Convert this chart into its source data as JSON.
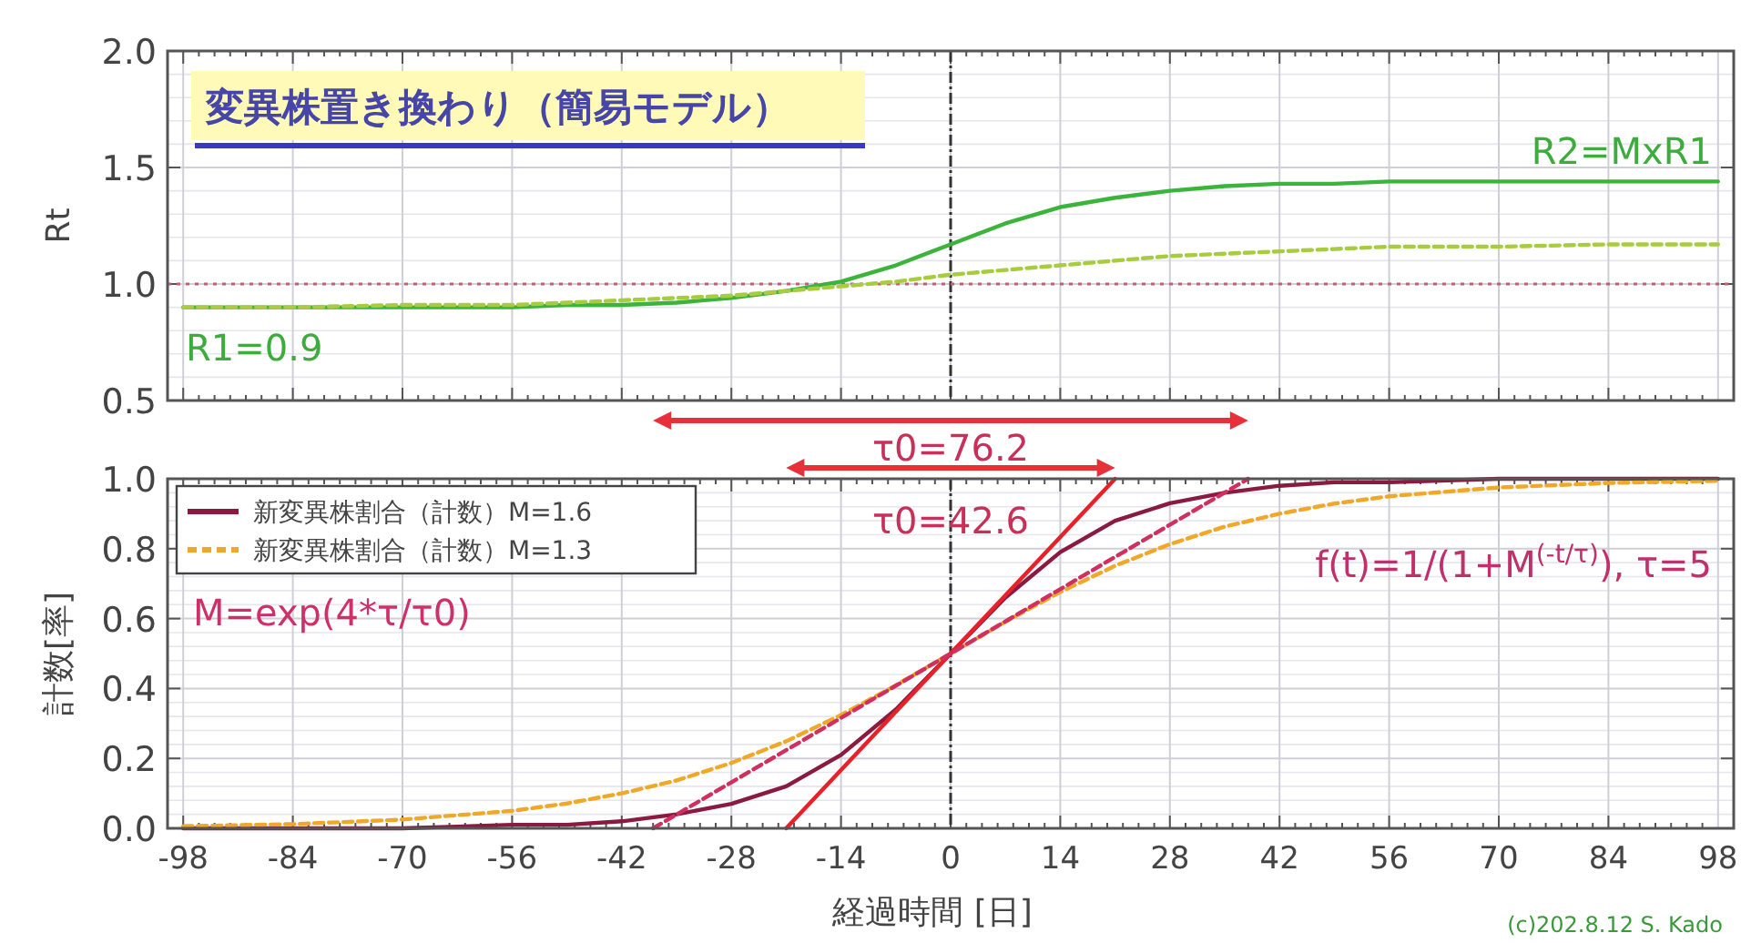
{
  "chart_data": [
    {
      "type": "line",
      "title": "変異株置き換わり（簡易モデル）",
      "ylabel": "Rt",
      "x": [
        -98,
        -84,
        -70,
        -56,
        -49,
        -42,
        -35,
        -28,
        -21,
        -14,
        -7,
        0,
        7,
        14,
        21,
        28,
        35,
        42,
        49,
        56,
        70,
        84,
        98
      ],
      "series": [
        {
          "color": "#3cb43c",
          "line_style": "solid",
          "values": [
            0.9,
            0.9,
            0.9,
            0.9,
            0.91,
            0.91,
            0.92,
            0.94,
            0.97,
            1.01,
            1.08,
            1.17,
            1.26,
            1.33,
            1.37,
            1.4,
            1.42,
            1.43,
            1.43,
            1.44,
            1.44,
            1.44,
            1.44
          ]
        },
        {
          "color": "#a8cc40",
          "line_style": "dashed",
          "values": [
            0.9,
            0.9,
            0.91,
            0.91,
            0.92,
            0.93,
            0.94,
            0.95,
            0.97,
            0.99,
            1.01,
            1.04,
            1.06,
            1.08,
            1.1,
            1.12,
            1.13,
            1.14,
            1.15,
            1.16,
            1.16,
            1.17,
            1.17
          ]
        }
      ],
      "annotations": [
        "R1=0.9",
        "R2=MxR1"
      ],
      "ref_lines": [
        {
          "axis": "x",
          "value": 0,
          "color": "#333333",
          "line_style": "dashed"
        },
        {
          "axis": "y",
          "value": 1,
          "color": "#c06070",
          "line_style": "dotted"
        }
      ],
      "xlim": [
        -100,
        100
      ],
      "ylim": [
        0.5,
        2.0
      ],
      "xticks": [
        -98,
        -84,
        -70,
        -56,
        -42,
        -28,
        -14,
        0,
        14,
        28,
        42,
        56,
        70,
        84,
        98
      ],
      "yticks": [
        {
          "value": 0.5,
          "label": "0.5"
        },
        {
          "value": 1,
          "label": "1.0"
        },
        {
          "value": 1.5,
          "label": "1.5"
        },
        {
          "value": 2,
          "label": "2.0"
        }
      ],
      "grid": true,
      "tick_labels": "y"
    },
    {
      "type": "line",
      "ylabel": "計数[率]",
      "xlabel": "経過時間 [日]",
      "x": [
        -98,
        -84,
        -70,
        -56,
        -49,
        -42,
        -35,
        -28,
        -21,
        -14,
        -7,
        0,
        7,
        14,
        21,
        28,
        35,
        42,
        49,
        56,
        70,
        84,
        98
      ],
      "series": [
        {
          "name": "新変異株割合（計数）M=1.6",
          "color": "#8b1a40",
          "line_style": "solid",
          "values": [
            0,
            0,
            0,
            0.01,
            0.01,
            0.02,
            0.04,
            0.07,
            0.12,
            0.21,
            0.34,
            0.5,
            0.66,
            0.79,
            0.88,
            0.93,
            0.96,
            0.98,
            0.99,
            0.99,
            1,
            1,
            1
          ]
        },
        {
          "name": "新変異株割合（計数）M=1.3",
          "color": "#f0a828",
          "line_style": "dashed",
          "values": [
            0.006,
            0.012,
            0.025,
            0.05,
            0.071,
            0.1,
            0.137,
            0.187,
            0.249,
            0.324,
            0.409,
            0.5,
            0.591,
            0.676,
            0.751,
            0.813,
            0.863,
            0.9,
            0.929,
            0.95,
            0.975,
            0.988,
            0.994
          ]
        },
        {
          "color": "#e8202a",
          "line_style": "solid",
          "x": [
            -21,
            21
          ],
          "values": [
            0,
            1
          ]
        },
        {
          "color": "#d03060",
          "line_style": "dashed",
          "x": [
            -38,
            38
          ],
          "values": [
            0,
            1
          ]
        }
      ],
      "annotations": [
        "τ0=42.6",
        "τ0=76.2",
        "M=exp(4*τ/τ0)",
        "f(t)=1/(1+M$^{(-t/τ)}$), τ=5",
        "(c)202.8.12 S. Kado"
      ],
      "ref_lines": [
        {
          "axis": "x",
          "value": 0,
          "color": "#333333",
          "line_style": "dashed"
        }
      ],
      "xlim": [
        -100,
        100
      ],
      "ylim": [
        0,
        1
      ],
      "xticks": [
        -98,
        -84,
        -70,
        -56,
        -42,
        -28,
        -14,
        0,
        14,
        28,
        42,
        56,
        70,
        84,
        98
      ],
      "yticks": [
        {
          "value": 0,
          "label": "0.0"
        },
        {
          "value": 0.2,
          "label": "0.2"
        },
        {
          "value": 0.4,
          "label": "0.4"
        },
        {
          "value": 0.6,
          "label": "0.6"
        },
        {
          "value": 0.8,
          "label": "0.8"
        },
        {
          "value": 1,
          "label": "1.0"
        }
      ],
      "grid": true,
      "legend": "top left"
    }
  ]
}
